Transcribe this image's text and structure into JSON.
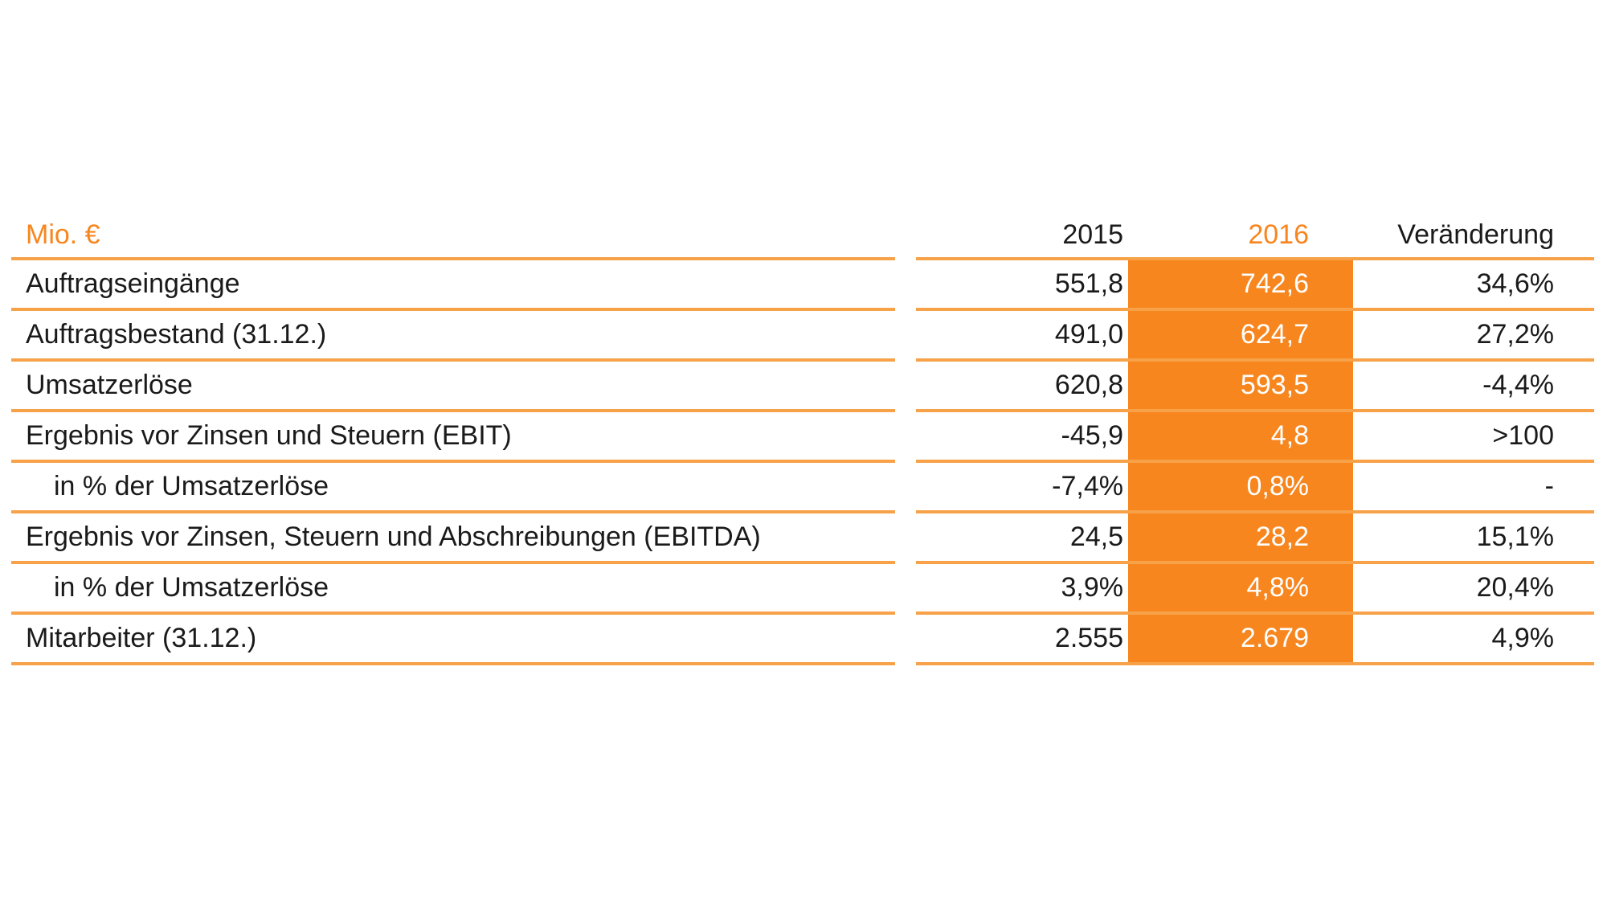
{
  "table": {
    "header": {
      "unit": "Mio. €",
      "col_2015": "2015",
      "col_2016": "2016",
      "col_change": "Veränderung"
    },
    "rows": [
      {
        "label": "Auftragseingänge",
        "v2015": "551,8",
        "v2016": "742,6",
        "change": "34,6%",
        "indent": false
      },
      {
        "label": "Auftragsbestand (31.12.)",
        "v2015": "491,0",
        "v2016": "624,7",
        "change": "27,2%",
        "indent": false
      },
      {
        "label": "Umsatzerlöse",
        "v2015": "620,8",
        "v2016": "593,5",
        "change": "-4,4%",
        "indent": false
      },
      {
        "label": "Ergebnis vor Zinsen und Steuern (EBIT)",
        "v2015": "-45,9",
        "v2016": "4,8",
        "change": ">100",
        "indent": false
      },
      {
        "label": "in % der Umsatzerlöse",
        "v2015": "-7,4%",
        "v2016": "0,8%",
        "change": "-",
        "indent": true
      },
      {
        "label": "Ergebnis vor Zinsen, Steuern und Abschreibungen (EBITDA)",
        "v2015": "24,5",
        "v2016": "28,2",
        "change": "15,1%",
        "indent": false
      },
      {
        "label": "in % der Umsatzerlöse",
        "v2015": "3,9%",
        "v2016": "4,8%",
        "change": "20,4%",
        "indent": true
      },
      {
        "label": "Mitarbeiter (31.12.)",
        "v2015": "2.555",
        "v2016": "2.679",
        "change": "4,9%",
        "indent": false
      }
    ]
  },
  "colors": {
    "accent": "#f7861e",
    "rule": "#f7a249",
    "text": "#1a1a1a"
  }
}
